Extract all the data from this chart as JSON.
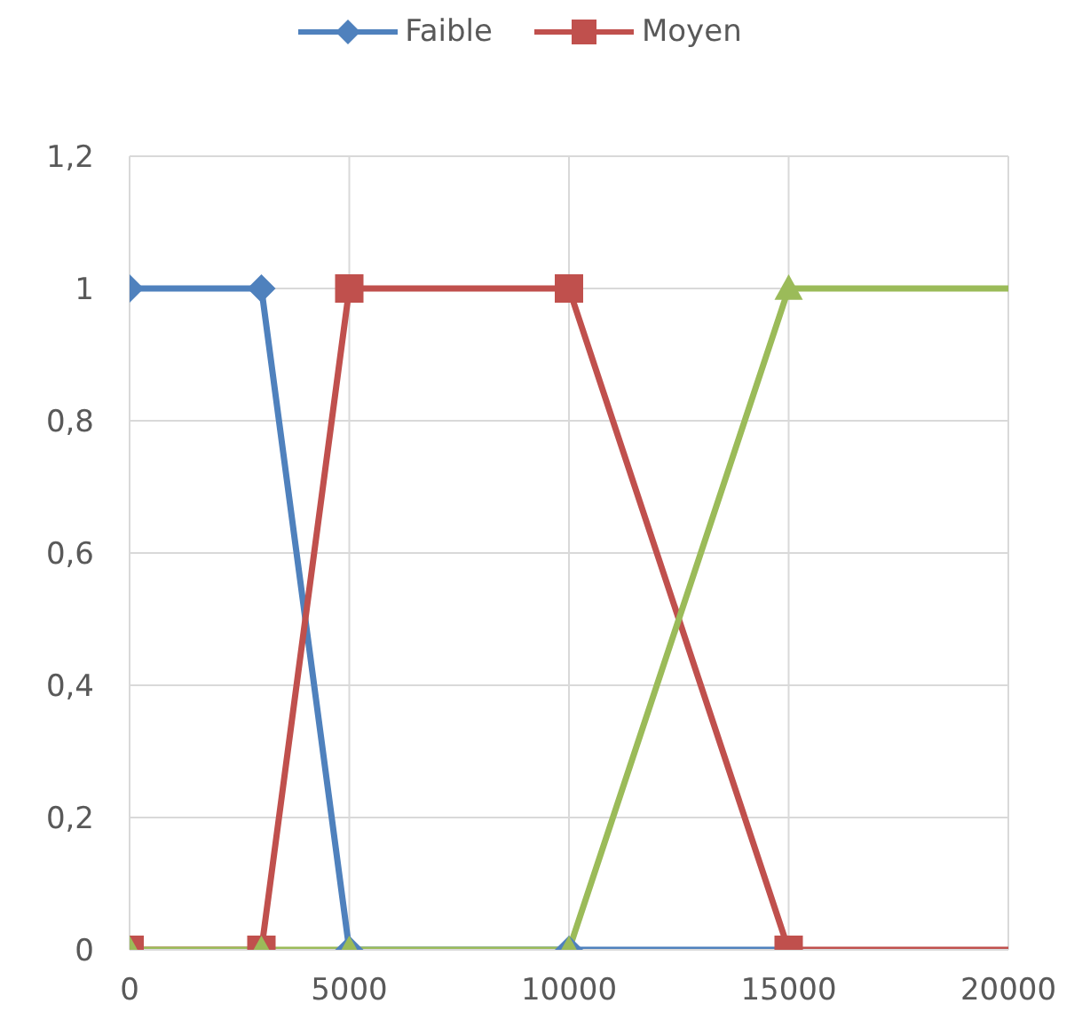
{
  "chart_data": {
    "type": "line",
    "legend": "top",
    "grid": true,
    "xlim": [
      0,
      20000
    ],
    "xticks": [
      0,
      5000,
      10000,
      15000,
      20000
    ],
    "ylim": [
      0,
      1.2
    ],
    "yticks": [
      0,
      {
        "value": 0.2,
        "label": "0,2"
      },
      {
        "value": 0.4,
        "label": "0,4"
      },
      {
        "value": 0.6,
        "label": "0,6"
      },
      {
        "value": 0.8,
        "label": "0,8"
      },
      1,
      {
        "value": 1.2,
        "label": "1,2"
      }
    ],
    "series": [
      {
        "name": "Faible",
        "color": "#4f81bd",
        "marker": "diamond",
        "x": [
          0,
          3000,
          5000,
          10000,
          15000
        ],
        "values": [
          1,
          1,
          0,
          0,
          0
        ]
      },
      {
        "name": "Moyen",
        "color": "#c0504d",
        "marker": "square",
        "x": [
          0,
          3000,
          5000,
          10000,
          15000,
          20000
        ],
        "values": [
          0,
          0,
          1,
          1,
          0,
          0
        ]
      },
      {
        "color": "#9bbb59",
        "marker": "triangle",
        "x": [
          0,
          3000,
          5000,
          10000,
          15000,
          20000
        ],
        "values": [
          0,
          0,
          0,
          0,
          1,
          1
        ]
      }
    ]
  }
}
